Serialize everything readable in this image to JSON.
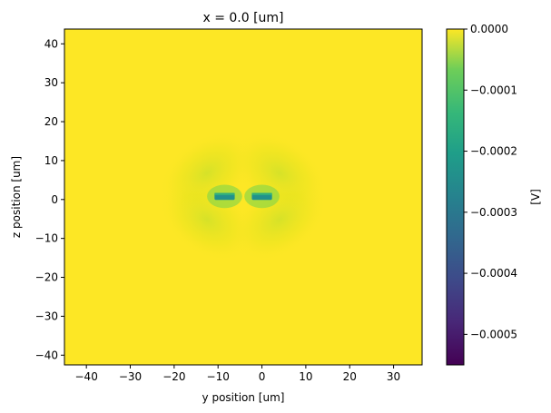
{
  "chart_data": {
    "type": "heatmap",
    "title": "x = 0.0 [um]",
    "xlabel": "y position [um]",
    "ylabel": "z position [um]",
    "xlim": [
      -45,
      36.5
    ],
    "ylim": [
      -42.5,
      43.8
    ],
    "xticks": [
      -40,
      -30,
      -20,
      -10,
      0,
      10,
      20,
      30
    ],
    "yticks": [
      -40,
      -30,
      -20,
      -10,
      0,
      10,
      20,
      30,
      40
    ],
    "xtick_labels": [
      "−40",
      "−30",
      "−20",
      "−10",
      "0",
      "10",
      "20",
      "30"
    ],
    "ytick_labels": [
      "−40",
      "−30",
      "−20",
      "−10",
      "0",
      "10",
      "20",
      "30",
      "40"
    ],
    "colorbar": {
      "label": "[V]",
      "range": [
        -0.00055,
        0.0
      ],
      "ticks": [
        0.0,
        -0.0001,
        -0.0002,
        -0.0003,
        -0.0004,
        -0.0005
      ],
      "tick_labels": [
        "0.0000",
        "−0.0001",
        "−0.0002",
        "−0.0003",
        "−0.0004",
        "−0.0005"
      ],
      "colormap": "viridis"
    },
    "features": [
      {
        "y": -8.5,
        "z": 0.8,
        "value": -0.00022
      },
      {
        "y": 0.0,
        "z": 0.8,
        "value": -0.00022
      }
    ],
    "background_value": 0.0
  }
}
